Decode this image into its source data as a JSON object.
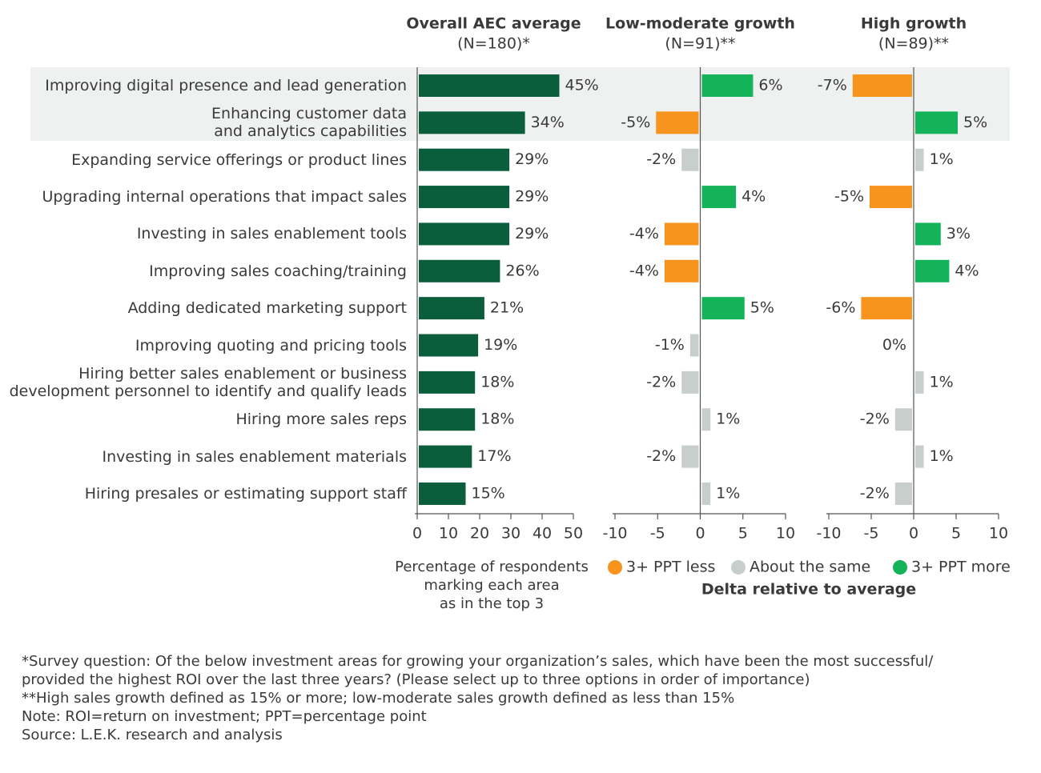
{
  "chart_data": [
    {
      "type": "bar",
      "orientation": "horizontal",
      "title": "Overall AEC average",
      "subtitle": "(N=180)*",
      "categories": [
        "Improving digital presence and lead generation",
        "Enhancing customer data\nand analytics capabilities",
        "Expanding service offerings or product lines",
        "Upgrading internal operations that impact sales",
        "Investing in sales enablement tools",
        "Improving sales coaching/training",
        "Adding dedicated marketing support",
        "Improving quoting and pricing tools",
        "Hiring better sales enablement or business\ndevelopment personnel to identify and qualify leads",
        "Hiring more sales reps",
        "Investing in sales enablement materials",
        "Hiring presales or estimating support staff"
      ],
      "values": [
        45,
        34,
        29,
        29,
        29,
        26,
        21,
        19,
        18,
        18,
        17,
        15
      ],
      "value_labels": [
        "45%",
        "34%",
        "29%",
        "29%",
        "29%",
        "26%",
        "21%",
        "19%",
        "18%",
        "18%",
        "17%",
        "15%"
      ],
      "color": "#0b5e3b",
      "xlim": [
        0,
        50
      ],
      "xticks": [
        0,
        10,
        20,
        30,
        40,
        50
      ],
      "x_label": "Percentage of respondents\nmarking each area\nas in the top 3"
    },
    {
      "type": "bar",
      "orientation": "horizontal",
      "title": "Low-moderate growth",
      "subtitle": "(N=91)**",
      "values": [
        6,
        -5,
        -2,
        4,
        -4,
        -4,
        5,
        -1,
        -2,
        1,
        -2,
        1
      ],
      "value_labels": [
        "6%",
        "-5%",
        "-2%",
        "4%",
        "-4%",
        "-4%",
        "5%",
        "-1%",
        "-2%",
        "1%",
        "-2%",
        "1%"
      ],
      "colors": [
        "#14b35a",
        "#f7941d",
        "#c8cecc",
        "#14b35a",
        "#f7941d",
        "#f7941d",
        "#14b35a",
        "#c8cecc",
        "#c8cecc",
        "#c8cecc",
        "#c8cecc",
        "#c8cecc"
      ],
      "xlim": [
        -10,
        10
      ],
      "xticks": [
        -10,
        -5,
        0,
        5,
        10
      ]
    },
    {
      "type": "bar",
      "orientation": "horizontal",
      "title": "High growth",
      "subtitle": "(N=89)**",
      "values": [
        -7,
        5,
        1,
        -5,
        3,
        4,
        -6,
        0,
        1,
        -2,
        1,
        -2
      ],
      "value_labels": [
        "-7%",
        "5%",
        "1%",
        "-5%",
        "3%",
        "4%",
        "-6%",
        "0%",
        "1%",
        "-2%",
        "1%",
        "-2%"
      ],
      "colors": [
        "#f7941d",
        "#14b35a",
        "#c8cecc",
        "#f7941d",
        "#14b35a",
        "#14b35a",
        "#f7941d",
        "#c8cecc",
        "#c8cecc",
        "#c8cecc",
        "#c8cecc",
        "#c8cecc"
      ],
      "xlim": [
        -10,
        10
      ],
      "xticks": [
        -10,
        -5,
        0,
        5,
        10
      ]
    }
  ],
  "legend": {
    "title": "Delta relative to average",
    "items": [
      {
        "name": "3+ PPT less",
        "color": "#f7941d"
      },
      {
        "name": "About the same",
        "color": "#c8cecc"
      },
      {
        "name": "3+ PPT more",
        "color": "#14b35a"
      }
    ]
  },
  "footnotes": [
    "*Survey question: Of the below investment areas for growing your organization’s sales, which have been the most successful/",
    "provided the highest ROI over the last three years? (Please select up to three options in order of importance)",
    "**High sales growth defined as 15% or more; low-moderate sales growth defined as less than 15%",
    "Note: ROI=return on investment; PPT=percentage point",
    "Source: L.E.K. research and analysis"
  ]
}
